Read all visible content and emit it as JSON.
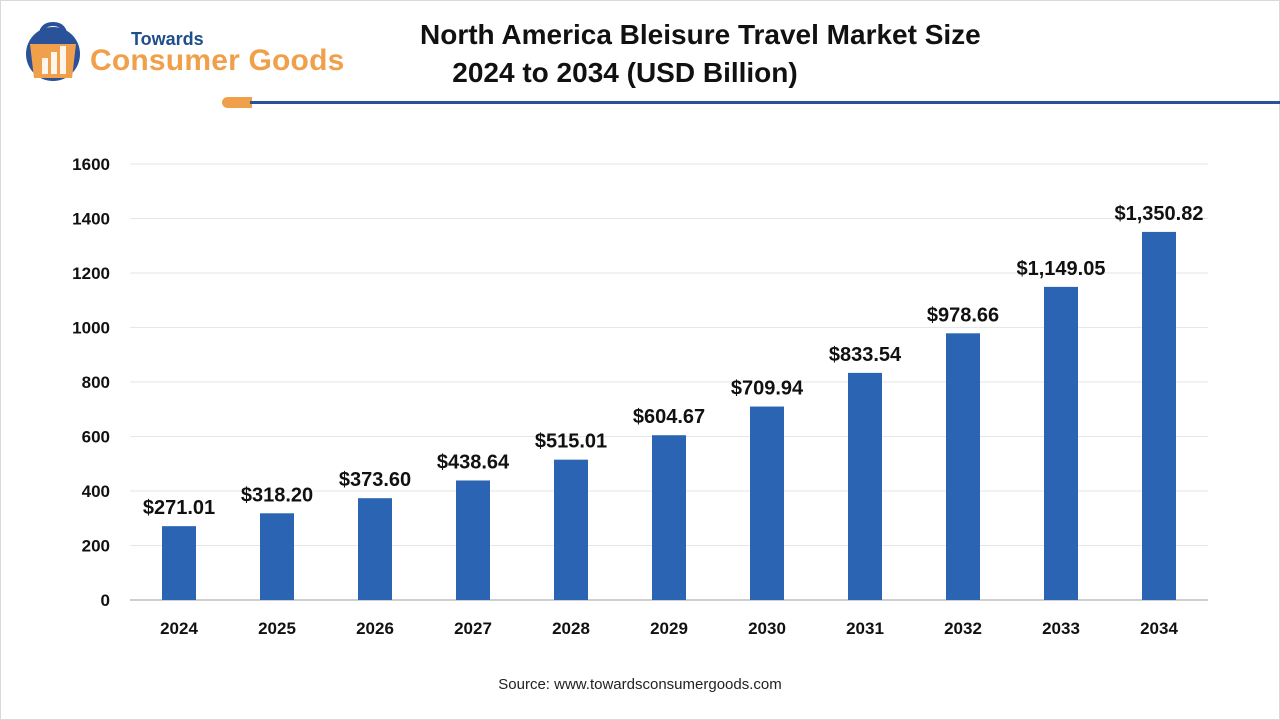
{
  "header": {
    "logo_top": "Towards",
    "logo_main": "Consumer Goods",
    "title_line1": "North America Bleisure Travel Market Size",
    "title_line2": "2024 to 2034 (USD Billion)"
  },
  "colors": {
    "bar": "#2b64b2",
    "accent": "#f0a04b",
    "rule": "#2a5298"
  },
  "chart_data": {
    "type": "bar",
    "title": "North America Bleisure Travel Market Size 2024 to 2034 (USD Billion)",
    "categories": [
      "2024",
      "2025",
      "2026",
      "2027",
      "2028",
      "2029",
      "2030",
      "2031",
      "2032",
      "2033",
      "2034"
    ],
    "values": [
      271.01,
      318.2,
      373.6,
      438.64,
      515.01,
      604.67,
      709.94,
      833.54,
      978.66,
      1149.05,
      1350.82
    ],
    "data_labels": [
      "$271.01",
      "$318.20",
      "$373.60",
      "$438.64",
      "$515.01",
      "$604.67",
      "$709.94",
      "$833.54",
      "$978.66",
      "$1,149.05",
      "$1,350.82"
    ],
    "y_ticks": [
      "0",
      "200",
      "400",
      "600",
      "800",
      "1000",
      "1200",
      "1400",
      "1600"
    ],
    "ylim": [
      0,
      1600
    ],
    "grid": true,
    "legend": "none"
  },
  "footer": {
    "source": "Source: www.towardsconsumergoods.com"
  }
}
